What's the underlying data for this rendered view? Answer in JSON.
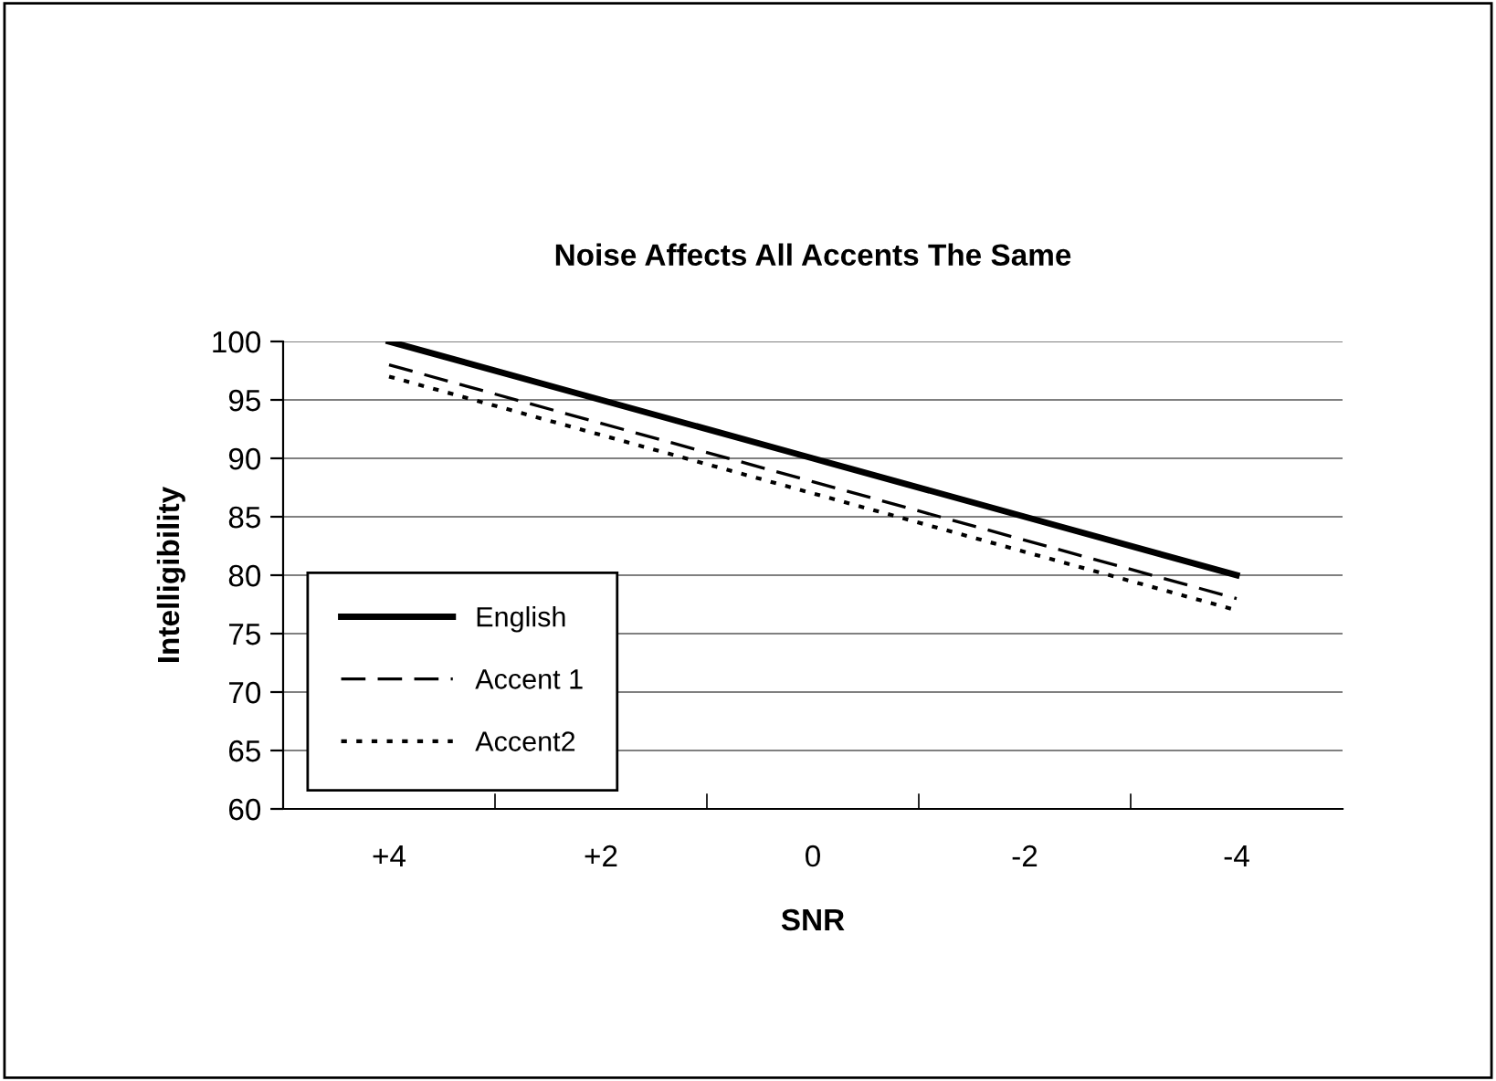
{
  "chart_data": {
    "type": "line",
    "title": "Noise Affects All Accents The Same",
    "xlabel": "SNR",
    "ylabel": "Intelligibility",
    "categories": [
      "+4",
      "+2",
      "0",
      "-2",
      "-4"
    ],
    "series": [
      {
        "name": "English",
        "color": "#000000",
        "line_style": "solid",
        "values": [
          100,
          95,
          90,
          85,
          80
        ]
      },
      {
        "name": "Accent 1",
        "color": "#000000",
        "line_style": "dashed",
        "values": [
          98,
          93,
          88,
          83,
          78
        ]
      },
      {
        "name": "Accent2",
        "color": "#000000",
        "line_style": "dotted",
        "values": [
          97,
          92,
          87,
          82,
          77
        ]
      }
    ],
    "ylim": [
      60,
      100
    ],
    "yticks": [
      60,
      65,
      70,
      75,
      80,
      85,
      90,
      95,
      100
    ],
    "grid": "y",
    "legend": "bottom left",
    "marker": "none"
  }
}
